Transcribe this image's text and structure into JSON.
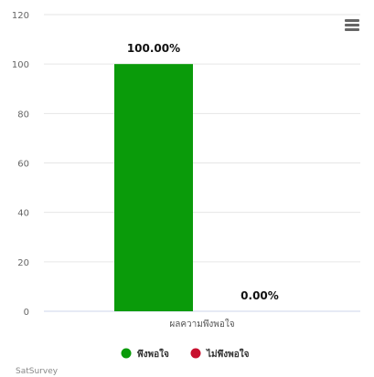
{
  "ui": {
    "menu_icon": "hamburger-menu-icon"
  },
  "chart_data": {
    "type": "bar",
    "categories": [
      "ผลความพึงพอใจ"
    ],
    "series": [
      {
        "name": "พึงพอใจ",
        "color": "#0a9b0a",
        "values": [
          100
        ],
        "label": "100.00%"
      },
      {
        "name": "ไม่พึงพอใจ",
        "color": "#c8102e",
        "values": [
          0
        ],
        "label": "0.00%"
      }
    ],
    "yticks": [
      0,
      20,
      40,
      60,
      80,
      100,
      120
    ],
    "ylim": [
      0,
      120
    ],
    "grid": true,
    "legend_position": "bottom-center",
    "credits": "SatSurvey"
  }
}
